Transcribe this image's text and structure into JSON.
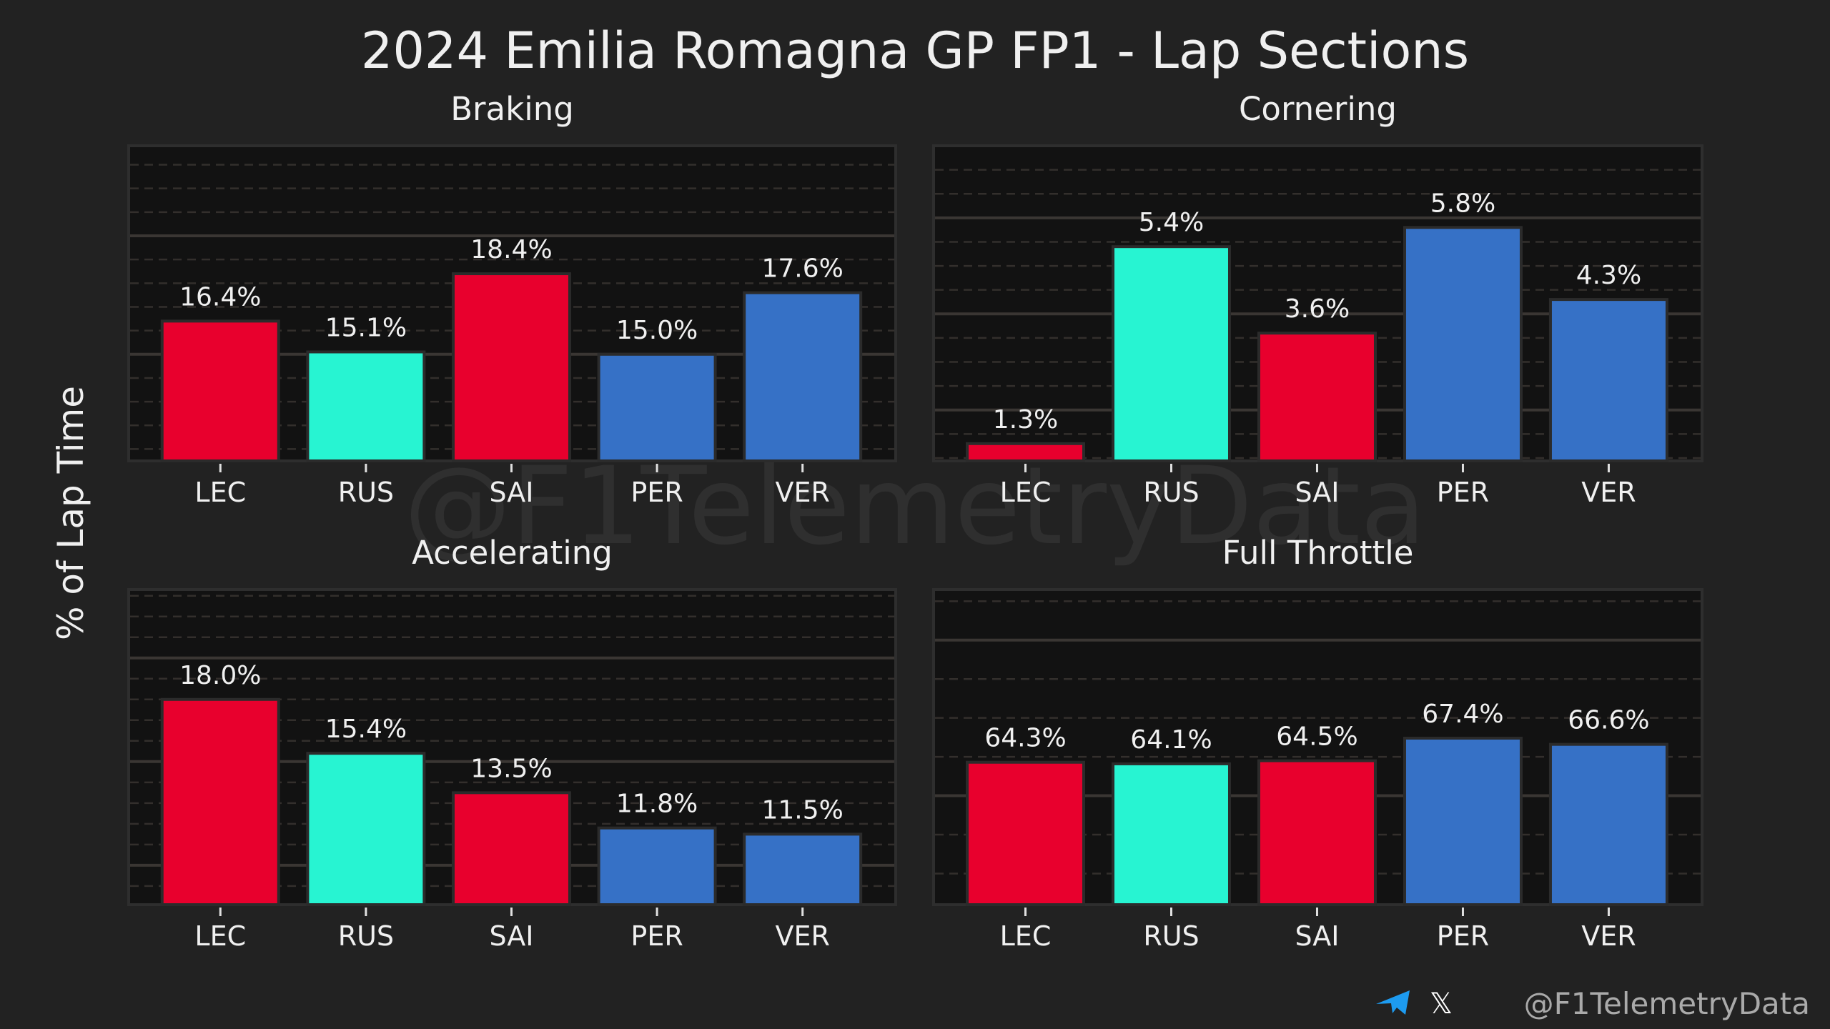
{
  "chart_data": {
    "type": "bar",
    "title": "2024 Emilia Romagna GP FP1 - Lap Sections",
    "ylabel": "% of Lap Time",
    "watermark": "@F1TelemetryData",
    "footer": {
      "handle": "@F1TelemetryData",
      "icons": [
        "telegram-icon",
        "x-icon"
      ]
    },
    "categories": [
      "LEC",
      "RUS",
      "SAI",
      "PER",
      "VER"
    ],
    "colors": [
      "#e8002d",
      "#27f4d2",
      "#e8002d",
      "#3671c6",
      "#3671c6"
    ],
    "panels": [
      {
        "title": "Braking",
        "values": [
          16.4,
          15.1,
          18.4,
          15.0,
          17.6
        ],
        "labels": [
          "16.4%",
          "15.1%",
          "18.4%",
          "15.0%",
          "17.6%"
        ],
        "ylim": [
          10.5,
          23.8
        ],
        "major": 5,
        "minor": 1
      },
      {
        "title": "Cornering",
        "values": [
          1.3,
          5.4,
          3.6,
          5.8,
          4.3
        ],
        "labels": [
          "1.3%",
          "5.4%",
          "3.6%",
          "5.8%",
          "4.3%"
        ],
        "ylim": [
          0.94,
          7.5
        ],
        "major": 2,
        "minor": 0.5
      },
      {
        "title": "Accelerating",
        "values": [
          18.0,
          15.4,
          13.5,
          11.8,
          11.5
        ],
        "labels": [
          "18.0%",
          "15.4%",
          "13.5%",
          "11.8%",
          "11.5%"
        ],
        "ylim": [
          8.1,
          23.3
        ],
        "major": 5,
        "minor": 1
      },
      {
        "title": "Full Throttle",
        "values": [
          64.3,
          64.1,
          64.5,
          67.4,
          66.6
        ],
        "labels": [
          "64.3%",
          "64.1%",
          "64.5%",
          "67.4%",
          "66.6%"
        ],
        "ylim": [
          46.0,
          86.5
        ],
        "major": 20,
        "minor": 5
      }
    ]
  }
}
